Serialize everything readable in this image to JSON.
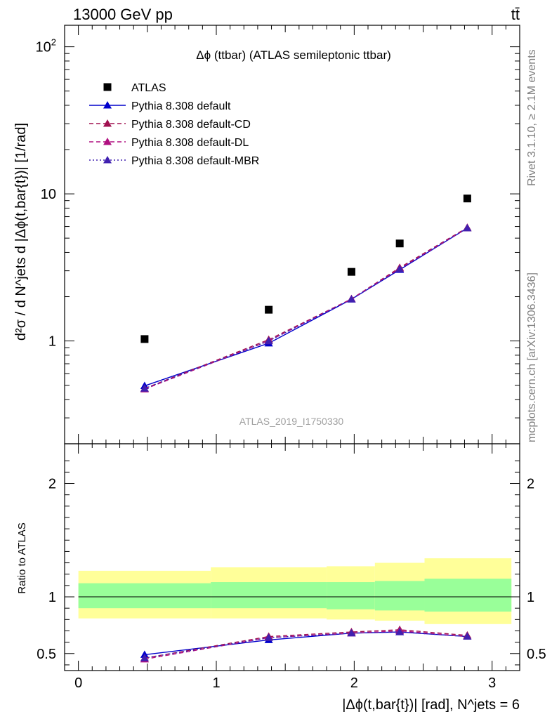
{
  "header": {
    "left": "13000 GeV pp",
    "right": "tt̄"
  },
  "side": {
    "rivet": "Rivet 3.1.10, ≥ 2.1M events",
    "mcplots": "mcplots.cern.ch [arXiv:1306.3436]"
  },
  "chart_data": [
    {
      "type": "scatter",
      "title": "Δϕ (ttbar) (ATLAS semileptonic ttbar)",
      "watermark": "ATLAS_2019_I1750330",
      "xlabel": "|Δϕ(t,bar{t})| [rad], N^jets = 6",
      "ylabel": "d²σ / d N^jets d |Δϕ(t,bar{t})| [1/rad]",
      "yscale": "log",
      "xlim": [
        -0.1,
        3.2
      ],
      "ylim": [
        0.2,
        140
      ],
      "yticklabels": [
        "1",
        "10",
        "10²"
      ],
      "xticklabels": [
        "0",
        "1",
        "2",
        "3"
      ],
      "legend_position": "top-left",
      "x": [
        0.48,
        1.38,
        1.98,
        2.33,
        2.82
      ],
      "series": [
        {
          "name": "ATLAS",
          "color": "#000000",
          "marker": "square",
          "line": "none",
          "values": [
            1.03,
            1.63,
            2.95,
            4.6,
            9.3
          ]
        },
        {
          "name": "Pythia 8.308 default",
          "color": "#0000cc",
          "marker": "triangle",
          "line": "solid",
          "values": [
            0.495,
            0.965,
            1.92,
            3.05,
            5.85
          ]
        },
        {
          "name": "Pythia 8.308 default-CD",
          "color": "#a01050",
          "marker": "triangle",
          "line": "dash",
          "values": [
            0.475,
            1.02,
            1.93,
            3.15,
            5.9
          ]
        },
        {
          "name": "Pythia 8.308 default-DL",
          "color": "#b01080",
          "marker": "triangle",
          "line": "dash",
          "values": [
            0.47,
            1.0,
            1.93,
            3.1,
            5.85
          ]
        },
        {
          "name": "Pythia 8.308 default-MBR",
          "color": "#4020b0",
          "marker": "triangle",
          "line": "dot",
          "values": [
            0.475,
            1.0,
            1.92,
            3.08,
            5.85
          ]
        }
      ]
    },
    {
      "type": "line",
      "ylabel": "Ratio to ATLAS",
      "xlim": [
        -0.1,
        3.2
      ],
      "ylim": [
        0.35,
        2.35
      ],
      "yticklabels": [
        "0.5",
        "1",
        "2"
      ],
      "bands": {
        "edges": [
          0.0,
          0.96,
          1.8,
          2.15,
          2.51,
          3.14
        ],
        "outer": {
          "color": "#ffff99",
          "lo": [
            0.81,
            0.81,
            0.8,
            0.79,
            0.76,
            0.72
          ],
          "hi": [
            1.23,
            1.26,
            1.27,
            1.3,
            1.34,
            1.38
          ]
        },
        "inner": {
          "color": "#99ff99",
          "lo": [
            0.9,
            0.9,
            0.89,
            0.88,
            0.87,
            0.86
          ],
          "hi": [
            1.12,
            1.13,
            1.13,
            1.14,
            1.16,
            1.18
          ]
        }
      },
      "reference": 1,
      "x": [
        0.48,
        1.38,
        1.98,
        2.33,
        2.82
      ],
      "series": [
        {
          "name": "Pythia 8.308 default",
          "values": [
            0.49,
            0.62,
            0.68,
            0.69,
            0.65
          ]
        },
        {
          "name": "Pythia 8.308 default-CD",
          "values": [
            0.46,
            0.65,
            0.69,
            0.71,
            0.66
          ]
        },
        {
          "name": "Pythia 8.308 default-DL",
          "values": [
            0.45,
            0.64,
            0.68,
            0.7,
            0.65
          ]
        },
        {
          "name": "Pythia 8.308 default-MBR",
          "values": [
            0.46,
            0.64,
            0.68,
            0.69,
            0.65
          ]
        }
      ]
    }
  ]
}
